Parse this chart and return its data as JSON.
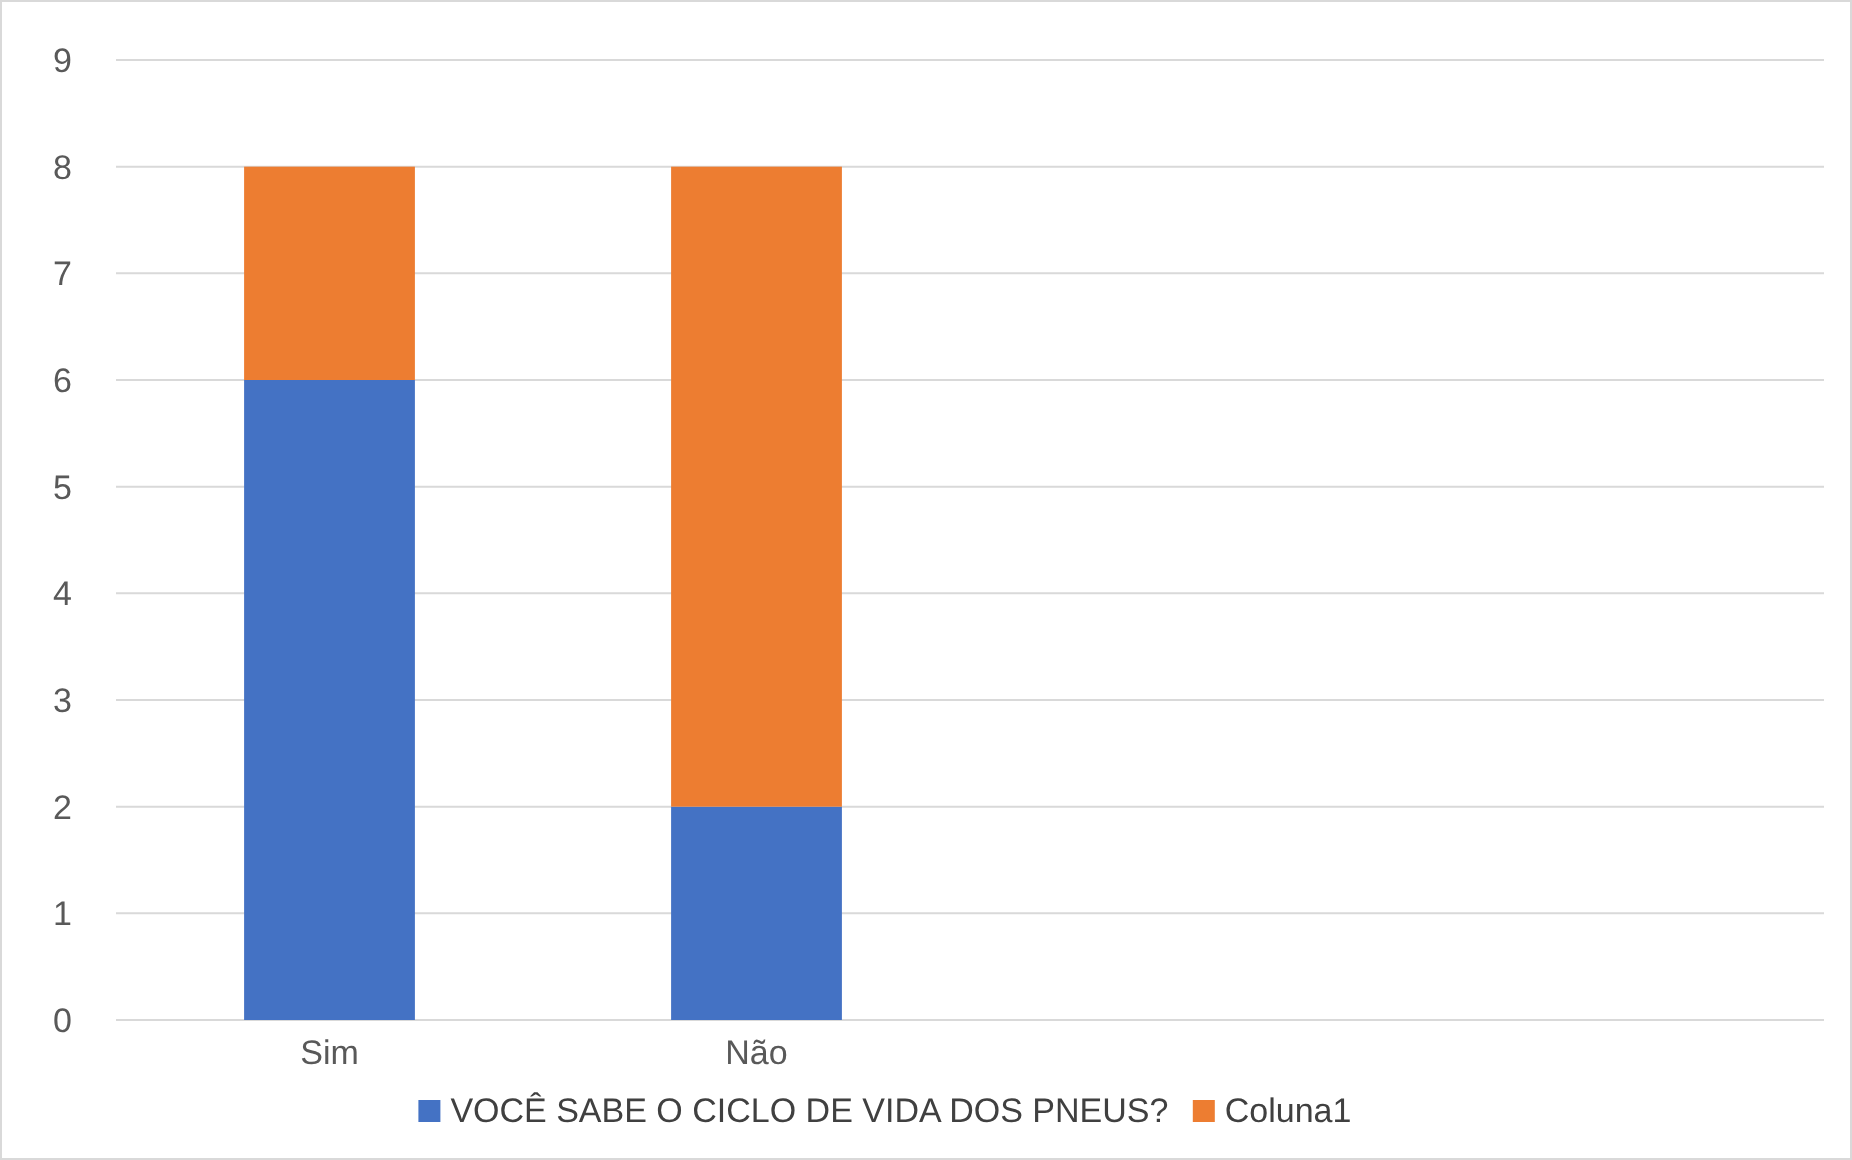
{
  "chart_data": {
    "type": "bar",
    "stacked": true,
    "categories": [
      "Sim",
      "Não",
      null,
      null
    ],
    "series": [
      {
        "name": "VOCÊ SABE O CICLO DE VIDA DOS PNEUS?",
        "color": "#4472c4",
        "values": [
          6,
          2,
          null,
          null
        ]
      },
      {
        "name": "Coluna1",
        "color": "#ed7d31",
        "values": [
          2,
          6,
          null,
          null
        ]
      }
    ],
    "ylim": [
      0,
      9
    ],
    "yticks": [
      0,
      1,
      2,
      3,
      4,
      5,
      6,
      7,
      8,
      9
    ],
    "grid": "y",
    "legend": "bottom"
  }
}
